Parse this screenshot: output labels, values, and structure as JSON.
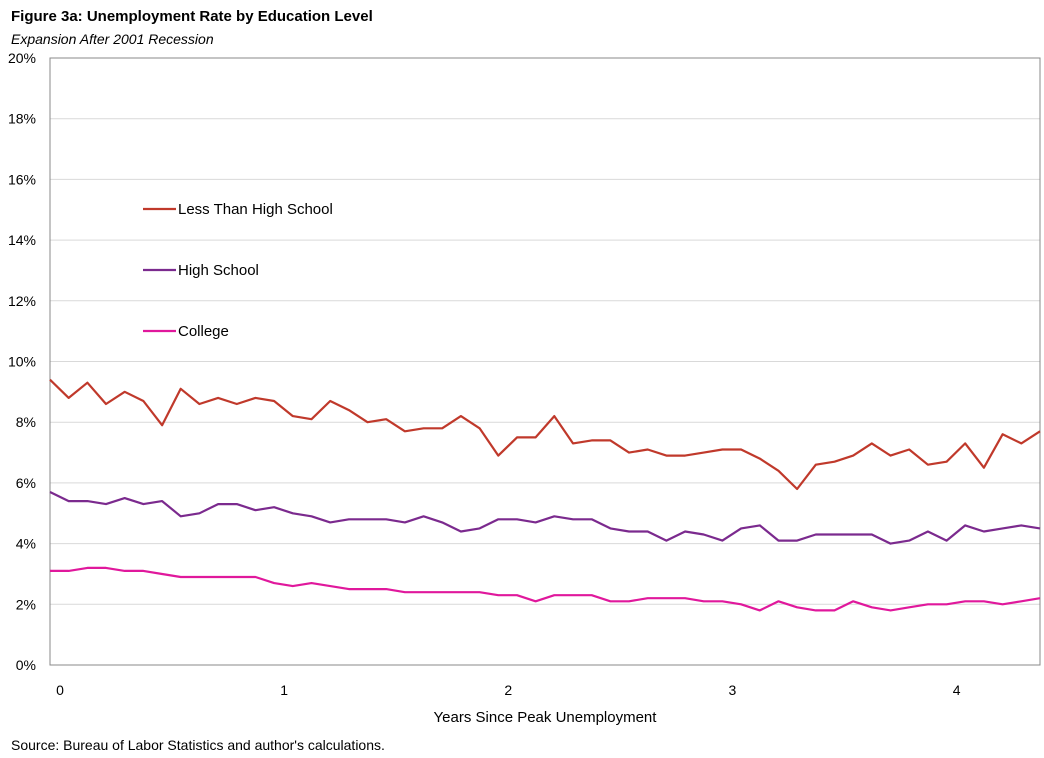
{
  "chart_data": {
    "type": "line",
    "title": "Figure 3a: Unemployment Rate by Education Level",
    "subtitle": "Expansion After 2001 Recession",
    "xlabel": "Years Since Peak Unemployment",
    "ylabel": "",
    "source": "Source: Bureau of Labor Statistics and author's calculations.",
    "xlim": [
      0,
      4.4167
    ],
    "ylim": [
      0,
      20
    ],
    "x_ticks": [
      0,
      1,
      2,
      3,
      4
    ],
    "y_ticks": [
      {
        "value": 0,
        "label": "0%"
      },
      {
        "value": 2,
        "label": "2%"
      },
      {
        "value": 4,
        "label": "4%"
      },
      {
        "value": 6,
        "label": "6%"
      },
      {
        "value": 8,
        "label": "8%"
      },
      {
        "value": 10,
        "label": "10%"
      },
      {
        "value": 12,
        "label": "12%"
      },
      {
        "value": 14,
        "label": "14%"
      },
      {
        "value": 16,
        "label": "16%"
      },
      {
        "value": 18,
        "label": "18%"
      },
      {
        "value": 20,
        "label": "20%"
      }
    ],
    "grid": "horizontal",
    "legend_position": "left-middle",
    "x_step": 0.08333,
    "series": [
      {
        "name": "Less Than High School",
        "color": "#c0392b",
        "values": [
          9.4,
          8.8,
          9.3,
          8.6,
          9.0,
          8.7,
          7.9,
          9.1,
          8.6,
          8.8,
          8.6,
          8.8,
          8.7,
          8.2,
          8.1,
          8.7,
          8.4,
          8.0,
          8.1,
          7.7,
          7.8,
          7.8,
          8.2,
          7.8,
          6.9,
          7.5,
          7.5,
          8.2,
          7.3,
          7.4,
          7.4,
          7.0,
          7.1,
          6.9,
          6.9,
          7.0,
          7.1,
          7.1,
          6.8,
          6.4,
          5.8,
          6.6,
          6.7,
          6.9,
          7.3,
          6.9,
          7.1,
          6.6,
          6.7,
          7.3,
          6.5,
          7.6,
          7.3,
          7.7
        ]
      },
      {
        "name": "High School",
        "color": "#7b2a8e",
        "values": [
          5.7,
          5.4,
          5.4,
          5.3,
          5.5,
          5.3,
          5.4,
          4.9,
          5.0,
          5.3,
          5.3,
          5.1,
          5.2,
          5.0,
          4.9,
          4.7,
          4.8,
          4.8,
          4.8,
          4.7,
          4.9,
          4.7,
          4.4,
          4.5,
          4.8,
          4.8,
          4.7,
          4.9,
          4.8,
          4.8,
          4.5,
          4.4,
          4.4,
          4.1,
          4.4,
          4.3,
          4.1,
          4.5,
          4.6,
          4.1,
          4.1,
          4.3,
          4.3,
          4.3,
          4.3,
          4.0,
          4.1,
          4.4,
          4.1,
          4.6,
          4.4,
          4.5,
          4.6,
          4.5
        ]
      },
      {
        "name": "College",
        "color": "#e0189c",
        "values": [
          3.1,
          3.1,
          3.2,
          3.2,
          3.1,
          3.1,
          3.0,
          2.9,
          2.9,
          2.9,
          2.9,
          2.9,
          2.7,
          2.6,
          2.7,
          2.6,
          2.5,
          2.5,
          2.5,
          2.4,
          2.4,
          2.4,
          2.4,
          2.4,
          2.3,
          2.3,
          2.1,
          2.3,
          2.3,
          2.3,
          2.1,
          2.1,
          2.2,
          2.2,
          2.2,
          2.1,
          2.1,
          2.0,
          1.8,
          2.1,
          1.9,
          1.8,
          1.8,
          2.1,
          1.9,
          1.8,
          1.9,
          2.0,
          2.0,
          2.1,
          2.1,
          2.0,
          2.1,
          2.2
        ]
      }
    ]
  }
}
